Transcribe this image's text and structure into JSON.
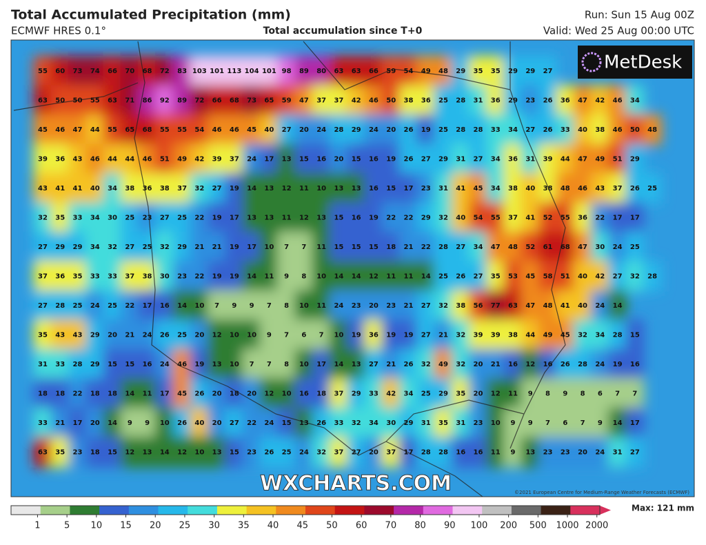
{
  "header": {
    "title": "Total Accumulated Precipitation (mm)",
    "model": "ECMWF HRES 0.1°",
    "subtitle": "Total accumulation since T+0",
    "run": "Run: Sun 15 Aug 00Z",
    "valid": "Valid: Wed 25 Aug 00:00 UTC"
  },
  "logo": "MetDesk",
  "watermark": "WXCHARTS.COM",
  "copyright": "©2021 European Centre for Medium-Range Weather Forecasts (ECMWF)",
  "map": {
    "rows": [
      [
        55,
        60,
        73,
        74,
        66,
        70,
        68,
        72,
        83,
        103,
        101,
        113,
        104,
        101,
        98,
        89,
        80,
        63,
        63,
        66,
        59,
        54,
        49,
        48,
        29,
        35,
        35,
        29,
        29,
        27
      ],
      [
        63,
        50,
        50,
        55,
        63,
        71,
        86,
        92,
        89,
        72,
        66,
        68,
        73,
        65,
        59,
        47,
        37,
        37,
        42,
        46,
        50,
        38,
        36,
        25,
        28,
        31,
        36,
        29,
        23,
        26,
        36,
        47,
        42,
        46,
        34
      ],
      [
        45,
        46,
        47,
        44,
        55,
        65,
        68,
        55,
        55,
        54,
        46,
        46,
        45,
        40,
        27,
        20,
        24,
        28,
        29,
        24,
        20,
        26,
        19,
        25,
        28,
        28,
        33,
        34,
        27,
        26,
        33,
        40,
        38,
        46,
        50,
        48
      ],
      [
        39,
        36,
        43,
        46,
        44,
        44,
        46,
        51,
        49,
        42,
        39,
        37,
        24,
        17,
        13,
        15,
        16,
        20,
        15,
        16,
        19,
        26,
        27,
        29,
        31,
        27,
        34,
        36,
        31,
        39,
        44,
        47,
        49,
        51,
        29
      ],
      [
        43,
        41,
        41,
        40,
        34,
        38,
        36,
        38,
        37,
        32,
        27,
        19,
        14,
        13,
        12,
        11,
        10,
        13,
        13,
        16,
        15,
        17,
        23,
        31,
        41,
        45,
        34,
        38,
        40,
        38,
        48,
        46,
        43,
        37,
        26,
        25
      ],
      [
        32,
        35,
        33,
        34,
        30,
        25,
        23,
        27,
        25,
        22,
        19,
        17,
        13,
        13,
        11,
        12,
        13,
        15,
        16,
        19,
        22,
        22,
        29,
        32,
        40,
        54,
        55,
        37,
        41,
        52,
        55,
        36,
        22,
        17,
        17
      ],
      [
        27,
        29,
        29,
        34,
        32,
        27,
        25,
        32,
        29,
        21,
        21,
        19,
        17,
        10,
        7,
        7,
        11,
        15,
        15,
        15,
        18,
        21,
        22,
        28,
        27,
        34,
        47,
        48,
        52,
        61,
        68,
        47,
        30,
        24,
        25
      ],
      [
        37,
        36,
        35,
        33,
        33,
        37,
        38,
        30,
        23,
        22,
        19,
        19,
        14,
        11,
        9,
        8,
        10,
        14,
        14,
        12,
        11,
        11,
        14,
        25,
        26,
        27,
        35,
        53,
        45,
        58,
        51,
        40,
        42,
        27,
        32,
        28
      ],
      [
        27,
        28,
        25,
        24,
        25,
        22,
        17,
        16,
        14,
        10,
        7,
        9,
        9,
        7,
        8,
        10,
        11,
        24,
        23,
        20,
        23,
        21,
        27,
        32,
        38,
        56,
        77,
        63,
        47,
        48,
        41,
        40,
        24,
        14
      ],
      [
        35,
        43,
        43,
        29,
        20,
        21,
        24,
        26,
        25,
        20,
        12,
        10,
        10,
        9,
        7,
        6,
        7,
        10,
        19,
        36,
        19,
        19,
        27,
        21,
        32,
        39,
        39,
        38,
        44,
        49,
        45,
        32,
        34,
        28,
        15
      ],
      [
        31,
        33,
        28,
        29,
        15,
        15,
        16,
        24,
        46,
        19,
        13,
        10,
        7,
        7,
        8,
        10,
        17,
        14,
        13,
        27,
        21,
        26,
        32,
        49,
        32,
        20,
        21,
        16,
        12,
        16,
        26,
        28,
        24,
        19,
        16
      ],
      [
        18,
        18,
        22,
        18,
        18,
        14,
        11,
        17,
        45,
        26,
        20,
        18,
        20,
        12,
        10,
        16,
        18,
        37,
        29,
        33,
        42,
        34,
        25,
        29,
        35,
        20,
        12,
        11,
        9,
        8,
        9,
        8,
        6,
        7,
        7
      ],
      [
        33,
        21,
        17,
        20,
        14,
        9,
        9,
        10,
        26,
        40,
        20,
        27,
        22,
        24,
        15,
        13,
        26,
        33,
        32,
        34,
        30,
        29,
        31,
        35,
        31,
        23,
        10,
        9,
        9,
        7,
        6,
        7,
        9,
        14,
        17
      ],
      [
        63,
        35,
        23,
        18,
        15,
        12,
        13,
        14,
        12,
        10,
        13,
        15,
        23,
        26,
        25,
        24,
        32,
        37,
        27,
        20,
        37,
        17,
        28,
        28,
        16,
        16,
        11,
        9,
        13,
        23,
        23,
        20,
        24,
        31,
        27
      ]
    ]
  },
  "colorbar": {
    "ticks": [
      1,
      5,
      10,
      15,
      20,
      25,
      30,
      35,
      40,
      45,
      50,
      60,
      70,
      80,
      90,
      100,
      200,
      500,
      1000,
      2000
    ],
    "colors": [
      "#e8e8e8",
      "#a6cf8a",
      "#2f7d32",
      "#3562d0",
      "#2f8fe0",
      "#26b8ea",
      "#43dcdc",
      "#eef03c",
      "#f5c222",
      "#f08a1e",
      "#e0461a",
      "#c41414",
      "#9c0a2c",
      "#b428a8",
      "#e06ae0",
      "#f2c6f2",
      "#c0c0c0",
      "#6a6a6a",
      "#3b2216",
      "#d8305c"
    ],
    "max_label": "Max: 121 mm"
  }
}
